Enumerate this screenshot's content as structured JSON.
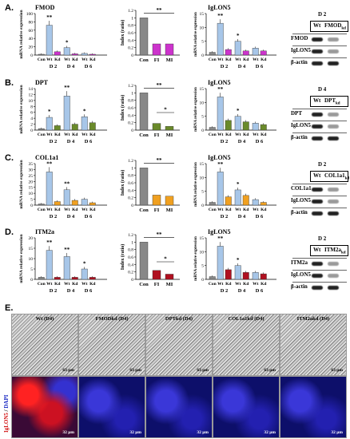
{
  "panels": [
    {
      "letter": "A.",
      "gene": "FMOD",
      "kd": "FMOD",
      "time": "D 2",
      "index": [
        1.0,
        0.3,
        0.3
      ],
      "index_sig": [
        "**"
      ],
      "gene_sig": [
        "**",
        "*"
      ],
      "ig_sig": [
        "**",
        "*"
      ],
      "gene_ymax": 100,
      "ig_ymax": 15,
      "gene_vals": [
        2,
        72,
        8,
        18,
        3,
        4,
        2
      ],
      "ig_vals": [
        1,
        11.5,
        2,
        5,
        1.5,
        2.5,
        1.5
      ]
    },
    {
      "letter": "B.",
      "gene": "DPT",
      "kd": "DPT",
      "time": "D 4",
      "index": [
        1.0,
        0.18,
        0.1
      ],
      "index_sig": [
        "**",
        "*"
      ],
      "gene_sig": [
        "*",
        "**",
        "*"
      ],
      "ig_sig": [
        "**",
        "*"
      ],
      "gene_ymax": 14,
      "gene_vals": [
        0.5,
        4.3,
        1.5,
        11.5,
        2,
        4.5,
        2.5
      ],
      "ig_vals": [
        1,
        12,
        3.5,
        5,
        3,
        2.5,
        2
      ]
    },
    {
      "letter": "C.",
      "gene": "COL1a1",
      "kd": "COL1a1",
      "time": "D 2",
      "index": [
        1.0,
        0.27,
        0.24
      ],
      "index_sig": [
        "**"
      ],
      "gene_sig": [
        "**",
        "**"
      ],
      "ig_sig": [
        "**",
        "*"
      ],
      "gene_ymax": 35,
      "gene_vals": [
        1,
        28,
        3,
        13,
        4,
        5,
        2
      ],
      "ig_vals": [
        1,
        12,
        3,
        5.5,
        3.5,
        2,
        1
      ]
    },
    {
      "letter": "D.",
      "gene": "ITM2a",
      "kd": "ITM2a",
      "time": "D 2",
      "index": [
        1.0,
        0.24,
        0.14
      ],
      "index_sig": [
        "**",
        "*"
      ],
      "gene_sig": [
        "**",
        "**",
        "*"
      ],
      "ig_sig": [
        "**",
        "*"
      ],
      "gene_ymax": 20,
      "gene_vals": [
        1,
        14,
        1,
        11,
        1,
        5,
        1
      ],
      "ig_vals": [
        1,
        12,
        3.5,
        5,
        2.5,
        2.5,
        2
      ]
    }
  ],
  "labels": {
    "ig": "IgLON5",
    "gene_ylabel": "mRNA relative expression",
    "index_ylabel": "Index (ratio)",
    "wt": "Wt",
    "kd": "Kd",
    "con": "Con",
    "fi": "FI",
    "mi": "MI",
    "days": [
      "D 2",
      "D 4",
      "D 6"
    ],
    "actin": "β-actin",
    "kd_sub": "kd"
  },
  "gene_ticks": {
    "A": [
      "0",
      "20",
      "40",
      "60",
      "80",
      "100"
    ],
    "B": [
      "0",
      "2",
      "4",
      "6",
      "8",
      "10",
      "12",
      "14"
    ],
    "C": [
      "0",
      "5",
      "10",
      "15",
      "20",
      "25",
      "30",
      "35"
    ],
    "D": [
      "0",
      "5",
      "10",
      "15",
      "20"
    ]
  },
  "ig_ticks": [
    "0",
    "5",
    "10",
    "15"
  ],
  "index_ticks": [
    "0",
    "0.2",
    "0.4",
    "0.6",
    "0.8",
    "1",
    "1.2"
  ],
  "colors": {
    "A": "#cc33cc",
    "B": "#6a8a2a",
    "C": "#f0a020",
    "D": "#b01020",
    "wt": "#a7c6e8",
    "con": "#888888"
  },
  "section_e": {
    "letter": "E.",
    "titles": [
      "Wt (D4)",
      "FMODkd (D4)",
      "DPTkd (D4)",
      "COL1a1kd (D4)",
      "ITM2akd (D4)"
    ],
    "scale_top": "63 μm",
    "scale_bottom": "32 μm",
    "row_label": "IgLON5 / DAPI"
  }
}
